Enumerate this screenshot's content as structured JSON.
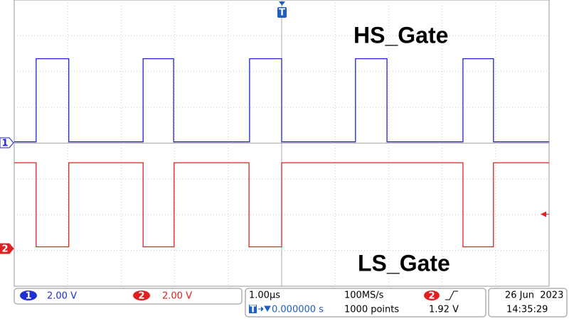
{
  "chart_data": {
    "type": "line",
    "xlim": [
      -5,
      5
    ],
    "ylim": [
      0,
      16
    ],
    "grid": true,
    "series": [
      {
        "name": "HS_Gate",
        "color": "#2222cc",
        "channel": "1",
        "x": [
          -5,
          -4.59,
          -4.59,
          -3.98,
          -3.98,
          -2.59,
          -2.59,
          -2.02,
          -2.02,
          -0.6,
          -0.6,
          0,
          0,
          1.38,
          1.38,
          1.97,
          1.97,
          3.39,
          3.39,
          3.96,
          3.96,
          5
        ],
        "values": [
          0.05,
          0.05,
          4.7,
          4.7,
          0.05,
          0.05,
          4.7,
          4.7,
          0.05,
          0.05,
          4.7,
          4.7,
          0.05,
          0.05,
          4.7,
          4.7,
          0.05,
          0.05,
          4.7,
          4.7,
          0.05,
          0.05
        ]
      },
      {
        "name": "LS_Gate",
        "color": "#dd2222",
        "channel": "2",
        "x": [
          -5,
          -4.59,
          -4.59,
          -3.98,
          -3.98,
          -2.59,
          -2.59,
          -2.01,
          -2.01,
          -0.61,
          -0.61,
          0,
          0,
          3.39,
          3.39,
          3.96,
          3.96,
          5
        ],
        "values": [
          4.8,
          4.8,
          0.1,
          0.1,
          4.8,
          4.8,
          0.1,
          0.1,
          4.8,
          4.8,
          0.1,
          0.1,
          4.8,
          4.8,
          0.1,
          0.1,
          4.8,
          4.8
        ]
      }
    ],
    "trigger_marker": "T",
    "status": {
      "ch1_badge": "1",
      "ch1_scale": "2.00 V",
      "ch2_badge": "2",
      "ch2_scale": "2.00 V",
      "timebase": "1.00µs",
      "sample_rate": "100MS/s",
      "trigger_source": "2",
      "trigger_level_label": "1.92 V",
      "trigger_level": 1.92,
      "trigger_position": "0.000000 s",
      "record_length": "1000 points",
      "date": "26 Jun  2023",
      "time": "14:35:29"
    }
  }
}
